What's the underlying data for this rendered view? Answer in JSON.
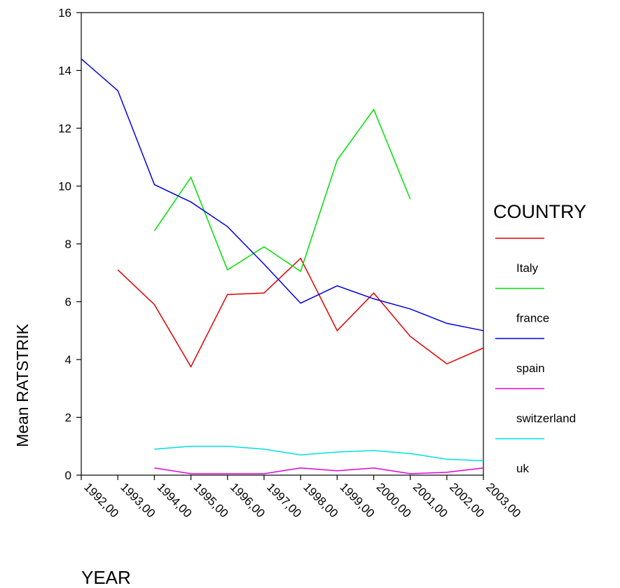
{
  "chart_data": {
    "type": "line",
    "title": "",
    "xlabel": "YEAR",
    "ylabel": "Mean RATSTRIK",
    "ylim": [
      0,
      16
    ],
    "yticks": [
      0,
      2,
      4,
      6,
      8,
      10,
      12,
      14,
      16
    ],
    "categories": [
      "1992,00",
      "1993,00",
      "1994,00",
      "1995,00",
      "1996,00",
      "1997,00",
      "1998,00",
      "1999,00",
      "2000,00",
      "2001,00",
      "2002,00",
      "2003,00"
    ],
    "legend": {
      "title": "COUNTRY",
      "position": "right"
    },
    "series": [
      {
        "name": "Italy",
        "color": "#e00000",
        "values": [
          null,
          7.1,
          5.9,
          3.75,
          6.25,
          6.3,
          7.5,
          5.0,
          6.3,
          4.8,
          3.85,
          4.4
        ]
      },
      {
        "name": "france",
        "color": "#00e000",
        "values": [
          null,
          null,
          8.45,
          10.3,
          7.1,
          7.9,
          7.05,
          10.9,
          12.65,
          9.55,
          null,
          null
        ]
      },
      {
        "name": "spain",
        "color": "#0000e0",
        "values": [
          14.4,
          13.3,
          10.05,
          9.45,
          8.6,
          7.3,
          5.95,
          6.55,
          6.1,
          5.75,
          5.25,
          5.0
        ]
      },
      {
        "name": "switzerland",
        "color": "#e000e0",
        "values": [
          null,
          null,
          0.25,
          0.05,
          0.05,
          0.05,
          0.25,
          0.15,
          0.25,
          0.05,
          0.1,
          0.25
        ]
      },
      {
        "name": "uk",
        "color": "#00e0e0",
        "values": [
          null,
          null,
          0.9,
          1.0,
          1.0,
          0.9,
          0.7,
          0.8,
          0.85,
          0.75,
          0.55,
          0.5
        ]
      }
    ]
  }
}
